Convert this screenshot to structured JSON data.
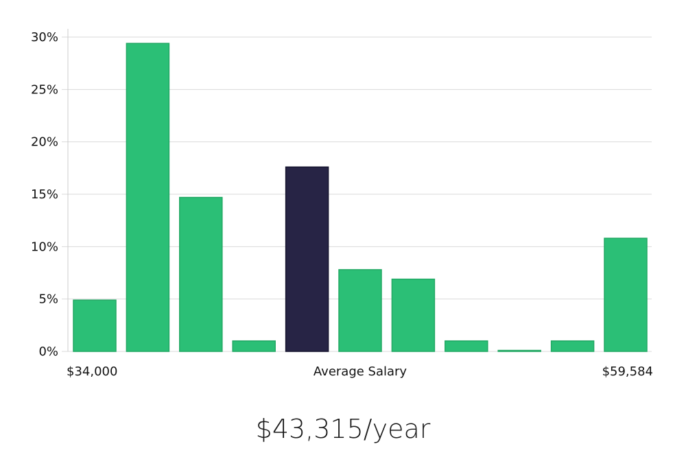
{
  "chart_data": {
    "type": "bar",
    "ylim": [
      0,
      30
    ],
    "yticks": [
      "0%",
      "5%",
      "10%",
      "15%",
      "20%",
      "25%",
      "30%"
    ],
    "ytick_values": [
      0,
      5,
      10,
      15,
      20,
      25,
      30
    ],
    "values": [
      4.9,
      29.4,
      14.7,
      1.0,
      17.6,
      7.8,
      6.9,
      1.0,
      0.1,
      1.0,
      10.8
    ],
    "highlight_index": 4,
    "grid": true,
    "x_labels": {
      "left": "$34,000",
      "center": "Average Salary",
      "right": "$59,584"
    },
    "colors": {
      "bar": "#2bbf76",
      "bar_edge": "#22a864",
      "highlight": "#272445",
      "highlight_edge": "#16142e",
      "grid": "#d9d9d9",
      "axis": "#cccccc"
    }
  },
  "salary": {
    "text": "$43,315/year"
  }
}
